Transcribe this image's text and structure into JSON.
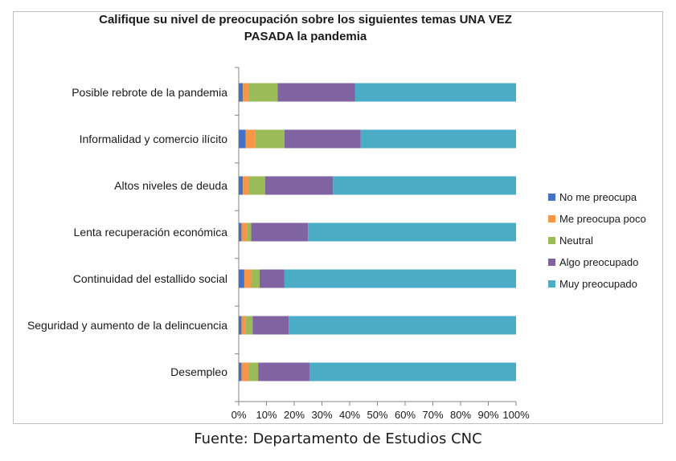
{
  "chart_data": {
    "type": "bar",
    "orientation": "horizontal",
    "stacked": "percent",
    "title": "Califique su nivel de preocupación sobre los siguientes temas UNA VEZ PASADA la pandemia",
    "categories": [
      "Posible rebrote de la pandemia",
      "Informalidad y comercio ilícito",
      "Altos niveles de deuda",
      "Lenta recuperación económica",
      "Continuidad del estallido social",
      "Seguridad y aumento de la delincuencia",
      "Desempleo"
    ],
    "series": [
      {
        "name": "No me preocupa",
        "color": "#4472c4",
        "values": [
          1.5,
          2.5,
          1.5,
          1,
          2,
          1,
          1
        ]
      },
      {
        "name": "Me preocupa poco",
        "color": "#f79646",
        "values": [
          2,
          3.5,
          2,
          2,
          2.5,
          1.5,
          2.5
        ]
      },
      {
        "name": "Neutral",
        "color": "#9bbb59",
        "values": [
          10.5,
          10.5,
          6,
          1.5,
          3,
          2.5,
          3.5
        ]
      },
      {
        "name": "Algo preocupado",
        "color": "#8064a2",
        "values": [
          28,
          27.5,
          24.5,
          20.5,
          9,
          13,
          18.5
        ]
      },
      {
        "name": "Muy preocupado",
        "color": "#4bacc6",
        "values": [
          58,
          56,
          66,
          75,
          83.5,
          82,
          74.5
        ]
      }
    ],
    "x_ticks": [
      "0%",
      "10%",
      "20%",
      "30%",
      "40%",
      "50%",
      "60%",
      "70%",
      "80%",
      "90%",
      "100%"
    ],
    "xlim": [
      0,
      100
    ],
    "grid": false,
    "legend_position": "right"
  },
  "footer": {
    "source": "Fuente: Departamento de Estudios CNC"
  }
}
